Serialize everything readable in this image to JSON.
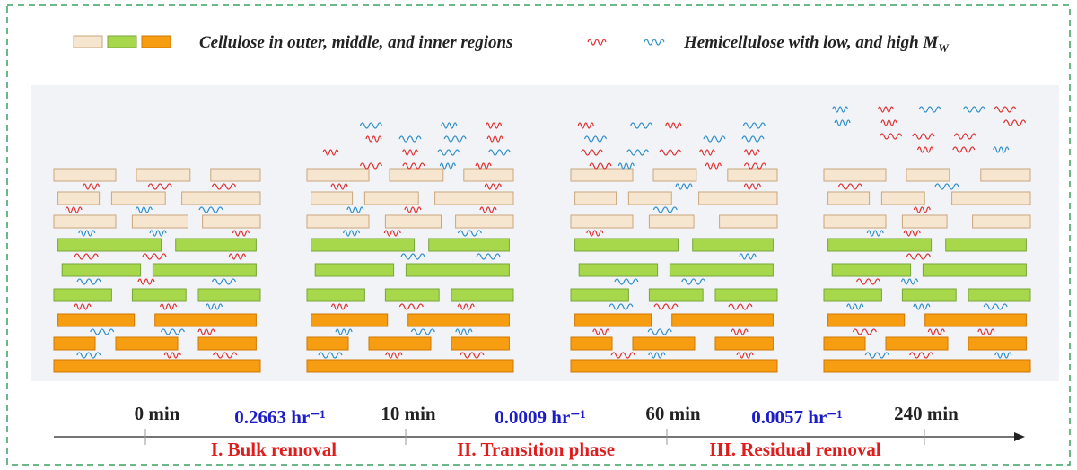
{
  "legend": {
    "cellulose": "Cellulose in outer, middle, and inner regions",
    "hemicellulose": {
      "text": "Hemicellulose with  low, and high M",
      "subscript": "W"
    }
  },
  "timeline": {
    "times": [
      "0 min",
      "10 min",
      "60 min",
      "240 min"
    ],
    "rates": [
      "0.2663 hr⁻¹",
      "0.0009 hr⁻¹",
      "0.0057 hr⁻¹"
    ],
    "phases": [
      "I. Bulk removal",
      "II. Transition phase",
      "III. Residual removal"
    ]
  }
}
